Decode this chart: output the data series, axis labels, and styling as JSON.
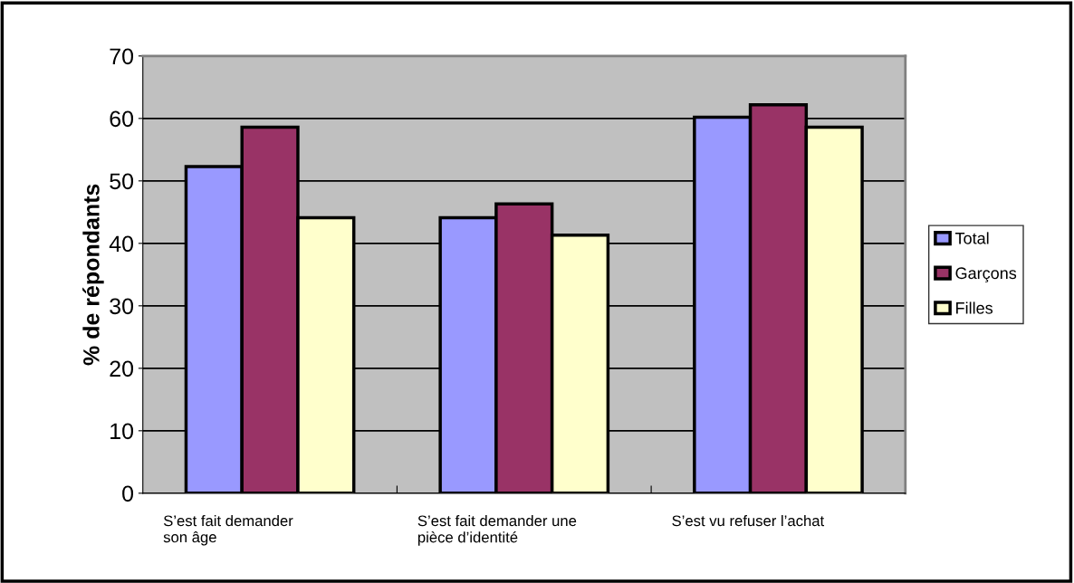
{
  "chart_data": {
    "type": "bar",
    "ylabel": "% de répondants",
    "categories": [
      "S’est fait demander\nson âge",
      "S’est fait demander une\npièce d’identité",
      "S’est vu refuser l’achat"
    ],
    "series": [
      {
        "name": "Total",
        "color": "#9999ff",
        "values": [
          52.3,
          44.1,
          60.2
        ]
      },
      {
        "name": "Garçons",
        "color": "#993366",
        "values": [
          58.6,
          46.3,
          62.2
        ]
      },
      {
        "name": "Filles",
        "color": "#ffffcc",
        "values": [
          44.1,
          41.3,
          58.6
        ]
      }
    ],
    "ylim": [
      0,
      70
    ],
    "yticks": [
      0,
      10,
      20,
      30,
      40,
      50,
      60,
      70
    ],
    "grid": "y",
    "legend": "right"
  }
}
